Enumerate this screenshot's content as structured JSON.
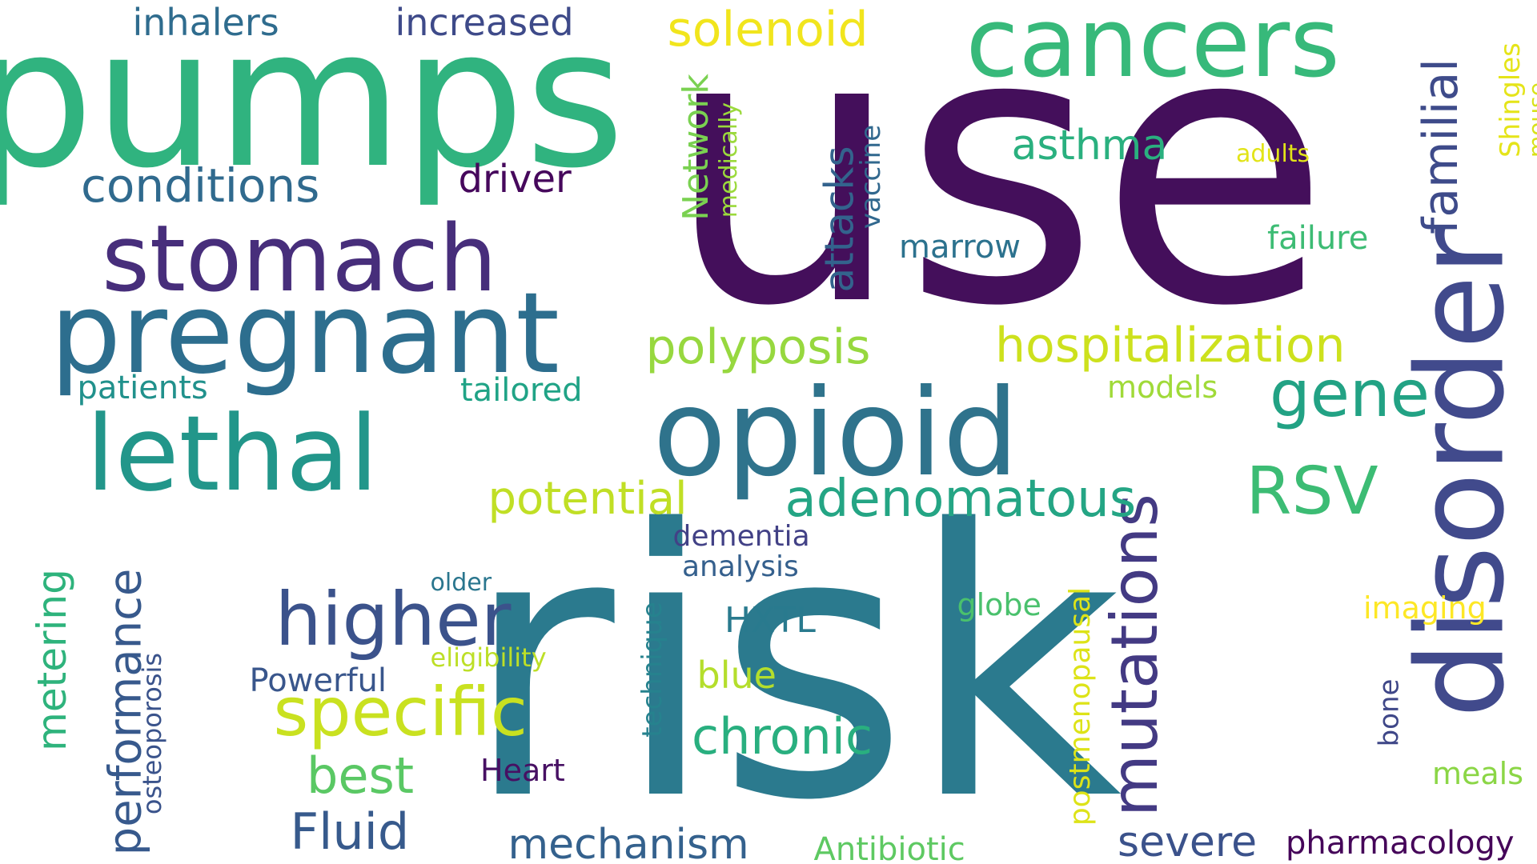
{
  "words": [
    {
      "text": "use",
      "color": "#440f5b",
      "vertical": false
    },
    {
      "text": "risk",
      "color": "#2b7a8e",
      "vertical": false
    },
    {
      "text": "pumps",
      "color": "#30b37f",
      "vertical": false
    },
    {
      "text": "disorder",
      "color": "#414a8c",
      "vertical": true
    },
    {
      "text": "opioid",
      "color": "#2f738c",
      "vertical": false
    },
    {
      "text": "pregnant",
      "color": "#2d6e8e",
      "vertical": false
    },
    {
      "text": "cancers",
      "color": "#37b97a",
      "vertical": false
    },
    {
      "text": "lethal",
      "color": "#22968a",
      "vertical": false
    },
    {
      "text": "stomach",
      "color": "#472e7b",
      "vertical": false
    },
    {
      "text": "mutations",
      "color": "#433a83",
      "vertical": true
    },
    {
      "text": "higher",
      "color": "#3b528b",
      "vertical": false
    },
    {
      "text": "specific",
      "color": "#c9e120",
      "vertical": false
    },
    {
      "text": "RSV",
      "color": "#3cbc74",
      "vertical": false
    },
    {
      "text": "hospitalization",
      "color": "#cde11d",
      "vertical": false
    },
    {
      "text": "adenomatous",
      "color": "#24a584",
      "vertical": false
    },
    {
      "text": "gene",
      "color": "#22a284",
      "vertical": false
    },
    {
      "text": "familial",
      "color": "#3e4b8a",
      "vertical": true
    },
    {
      "text": "polyposis",
      "color": "#97d83f",
      "vertical": false
    },
    {
      "text": "conditions",
      "color": "#306a8e",
      "vertical": false
    },
    {
      "text": "performance",
      "color": "#37598c",
      "vertical": true
    },
    {
      "text": "chronic",
      "color": "#29af7f",
      "vertical": false
    },
    {
      "text": "best",
      "color": "#5ac864",
      "vertical": false
    },
    {
      "text": "Fluid",
      "color": "#375a8c",
      "vertical": false
    },
    {
      "text": "metering",
      "color": "#2eb37c",
      "vertical": true
    },
    {
      "text": "potential",
      "color": "#c0df25",
      "vertical": false
    },
    {
      "text": "mechanism",
      "color": "#34618d",
      "vertical": false
    },
    {
      "text": "severe",
      "color": "#3b528b",
      "vertical": false
    },
    {
      "text": "solenoid",
      "color": "#f1e51d",
      "vertical": false
    },
    {
      "text": "attacks",
      "color": "#33638d",
      "vertical": true
    },
    {
      "text": "asthma",
      "color": "#2ab07f",
      "vertical": false
    },
    {
      "text": "Network",
      "color": "#7ad151",
      "vertical": true
    },
    {
      "text": "inhalers",
      "color": "#2f6c8e",
      "vertical": false
    },
    {
      "text": "increased",
      "color": "#3e4a89",
      "vertical": false
    },
    {
      "text": "driver",
      "color": "#46085c",
      "vertical": false
    },
    {
      "text": "HXTL",
      "color": "#297a8e",
      "vertical": false
    },
    {
      "text": "blue",
      "color": "#b4de2c",
      "vertical": false
    },
    {
      "text": "pharmacology",
      "color": "#450559",
      "vertical": false
    },
    {
      "text": "postmenopausal",
      "color": "#dde318",
      "vertical": true
    },
    {
      "text": "Shingles",
      "color": "#e5e419",
      "vertical": true
    },
    {
      "text": "osteoporosis",
      "color": "#3a538b",
      "vertical": true
    },
    {
      "text": "dementia",
      "color": "#424186",
      "vertical": false
    },
    {
      "text": "analysis",
      "color": "#35608d",
      "vertical": false
    },
    {
      "text": "technique",
      "color": "#26828e",
      "vertical": true
    },
    {
      "text": "marrow",
      "color": "#2c728e",
      "vertical": false
    },
    {
      "text": "failure",
      "color": "#3dbc74",
      "vertical": false
    },
    {
      "text": "vaccine",
      "color": "#31688e",
      "vertical": true
    },
    {
      "text": "medically",
      "color": "#9bd93c",
      "vertical": true
    },
    {
      "text": "patients",
      "color": "#21918c",
      "vertical": false
    },
    {
      "text": "tailored",
      "color": "#20a386",
      "vertical": false
    },
    {
      "text": "Antibiotic",
      "color": "#5ec962",
      "vertical": false
    },
    {
      "text": "Powerful",
      "color": "#39568c",
      "vertical": false
    },
    {
      "text": "eligibility",
      "color": "#bddf26",
      "vertical": false
    },
    {
      "text": "Heart",
      "color": "#471063",
      "vertical": false
    },
    {
      "text": "globe",
      "color": "#4ac16d",
      "vertical": false
    },
    {
      "text": "models",
      "color": "#a0da39",
      "vertical": false
    },
    {
      "text": "imaging",
      "color": "#fde725",
      "vertical": false
    },
    {
      "text": "bone",
      "color": "#3f4788",
      "vertical": true
    },
    {
      "text": "meals",
      "color": "#8bd646",
      "vertical": false
    },
    {
      "text": "mouse",
      "color": "#d8e219",
      "vertical": true
    },
    {
      "text": "adults",
      "color": "#e2e418",
      "vertical": false
    },
    {
      "text": "older",
      "color": "#2a768e",
      "vertical": false
    }
  ]
}
